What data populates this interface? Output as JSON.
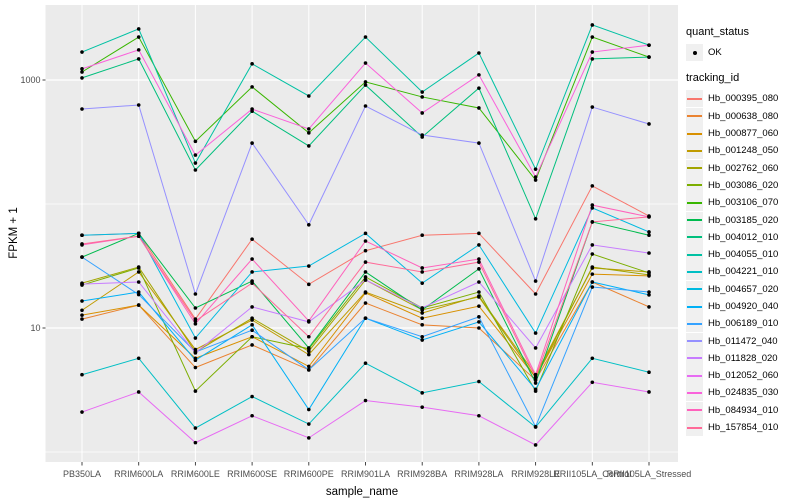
{
  "chart_data": {
    "type": "line",
    "title": "",
    "xlabel": "sample_name",
    "ylabel": "FPKM + 1",
    "y_scale": "log10",
    "ylim": [
      1,
      4000
    ],
    "y_ticks": [
      {
        "label": "1000",
        "value": 1000
      },
      {
        "label": "10",
        "value": 10
      }
    ],
    "y_minor_gridlines": [
      1,
      100
    ],
    "grid": true,
    "legend_position": "right",
    "point_marker": "black-dot",
    "categories": [
      "PB350LA",
      "RRIM600LA",
      "RRIM600LE",
      "RRIM600SE",
      "RRIM600PE",
      "RRIM901LA",
      "RRIM928BA",
      "RRIM928LA",
      "RRIM928LE",
      "RRII105LA_Control",
      "RRII105LA_Stressed"
    ],
    "series": [
      {
        "tracking_id": "Hb_000395_080",
        "color": "#F8766D",
        "values": [
          56,
          58,
          11.8,
          52,
          22.5,
          42,
          56,
          58,
          18.8,
          140,
          80
        ]
      },
      {
        "tracking_id": "Hb_000638_080",
        "color": "#EA8331",
        "values": [
          11.8,
          15.3,
          4.8,
          7.3,
          4.6,
          15.9,
          10.6,
          10.0,
          3.8,
          23.5,
          14.8
        ]
      },
      {
        "tracking_id": "Hb_000877_060",
        "color": "#D89000",
        "values": [
          12.7,
          15.3,
          5.7,
          8.5,
          4.9,
          19.2,
          12.0,
          15.0,
          4.0,
          27.2,
          26.3
        ]
      },
      {
        "tracking_id": "Hb_001248_050",
        "color": "#C09B00",
        "values": [
          13.9,
          28.3,
          6.7,
          11.6,
          6.1,
          19.5,
          13.2,
          18.1,
          4.2,
          30.5,
          28.3
        ]
      },
      {
        "tracking_id": "Hb_002762_060",
        "color": "#A3A500",
        "values": [
          23.0,
          31.0,
          6.4,
          12.0,
          6.5,
          24.4,
          14.0,
          17.8,
          4.0,
          31.0,
          26.8
        ]
      },
      {
        "tracking_id": "Hb_003086_020",
        "color": "#7CAE00",
        "values": [
          22.2,
          30.5,
          3.1,
          8.5,
          6.8,
          25.8,
          14.5,
          19.5,
          3.1,
          39.5,
          27.8
        ]
      },
      {
        "tracking_id": "Hb_003106_070",
        "color": "#39B600",
        "values": [
          1160,
          2220,
          320,
          880,
          375,
          965,
          730,
          595,
          156,
          2220,
          1530
        ]
      },
      {
        "tracking_id": "Hb_003185_020",
        "color": "#00BB4E",
        "values": [
          37.3,
          58,
          14.5,
          23.9,
          6.9,
          28.3,
          14.0,
          30.0,
          3.6,
          71.7,
          56
        ]
      },
      {
        "tracking_id": "Hb_004012_010",
        "color": "#00BF7D",
        "values": [
          1040,
          1480,
          188,
          560,
          294,
          910,
          347,
          860,
          76,
          1480,
          1530
        ]
      },
      {
        "tracking_id": "Hb_004055_010",
        "color": "#00C1A3",
        "values": [
          1680,
          2580,
          214,
          1350,
          743,
          2220,
          800,
          1650,
          191,
          2780,
          1910
        ]
      },
      {
        "tracking_id": "Hb_004221_010",
        "color": "#00BFC4",
        "values": [
          4.2,
          5.7,
          1.56,
          2.8,
          1.68,
          5.2,
          3.0,
          3.7,
          1.59,
          5.7,
          4.4
        ]
      },
      {
        "tracking_id": "Hb_004657_020",
        "color": "#00BAE0",
        "values": [
          56,
          58,
          8.3,
          28.3,
          31.6,
          58,
          23.0,
          46.8,
          9.1,
          93,
          59.5
        ]
      },
      {
        "tracking_id": "Hb_004920_040",
        "color": "#00B0F6",
        "values": [
          16.5,
          19.5,
          5.5,
          10.6,
          2.2,
          12.0,
          8.0,
          11.2,
          3.2,
          23.5,
          18.5
        ]
      },
      {
        "tracking_id": "Hb_006189_010",
        "color": "#35A2FF",
        "values": [
          37.3,
          18.6,
          6.4,
          9.6,
          4.6,
          12.0,
          8.5,
          12.3,
          1.6,
          21.4,
          19.5
        ]
      },
      {
        "tracking_id": "Hb_011472_040",
        "color": "#9590FF",
        "values": [
          583,
          628,
          18.8,
          310,
          68,
          617,
          360,
          310,
          23.9,
          605,
          442
        ]
      },
      {
        "tracking_id": "Hb_011828_020",
        "color": "#C77CFF",
        "values": [
          22.6,
          23.5,
          6.3,
          14.8,
          11.2,
          24.4,
          14.5,
          23.5,
          6.9,
          46.8,
          40.2
        ]
      },
      {
        "tracking_id": "Hb_012052_060",
        "color": "#E76BF3",
        "values": [
          2.1,
          3.05,
          1.19,
          1.96,
          1.3,
          2.6,
          2.3,
          1.96,
          1.14,
          3.65,
          3.05
        ]
      },
      {
        "tracking_id": "Hb_024835_030",
        "color": "#FA62DB",
        "values": [
          1230,
          1750,
          248,
          583,
          403,
          1370,
          542,
          1100,
          165,
          1680,
          1910
        ]
      },
      {
        "tracking_id": "Hb_084934_010",
        "color": "#FF62BC",
        "values": [
          46.8,
          55,
          10.8,
          36,
          11.4,
          50.3,
          30.5,
          36,
          4.2,
          98,
          78.7
        ]
      },
      {
        "tracking_id": "Hb_157854_010",
        "color": "#FF6A98",
        "values": [
          47.6,
          55,
          11.4,
          23,
          8.5,
          34,
          28.3,
          34,
          4.0,
          71.7,
          78.7
        ]
      }
    ]
  },
  "legend": {
    "quant_status": {
      "title": "quant_status",
      "items": [
        {
          "label": "OK",
          "marker": "point",
          "color": "#000000"
        }
      ]
    },
    "tracking_id": {
      "title": "tracking_id"
    }
  },
  "colors": {
    "panel_background": "#EBEBEB",
    "gridline": "#FFFFFF",
    "point": "#000000",
    "tick_text": "#4D4D4D",
    "axis_title_text": "#000000",
    "legend_key_background": "#F0F0F0"
  }
}
